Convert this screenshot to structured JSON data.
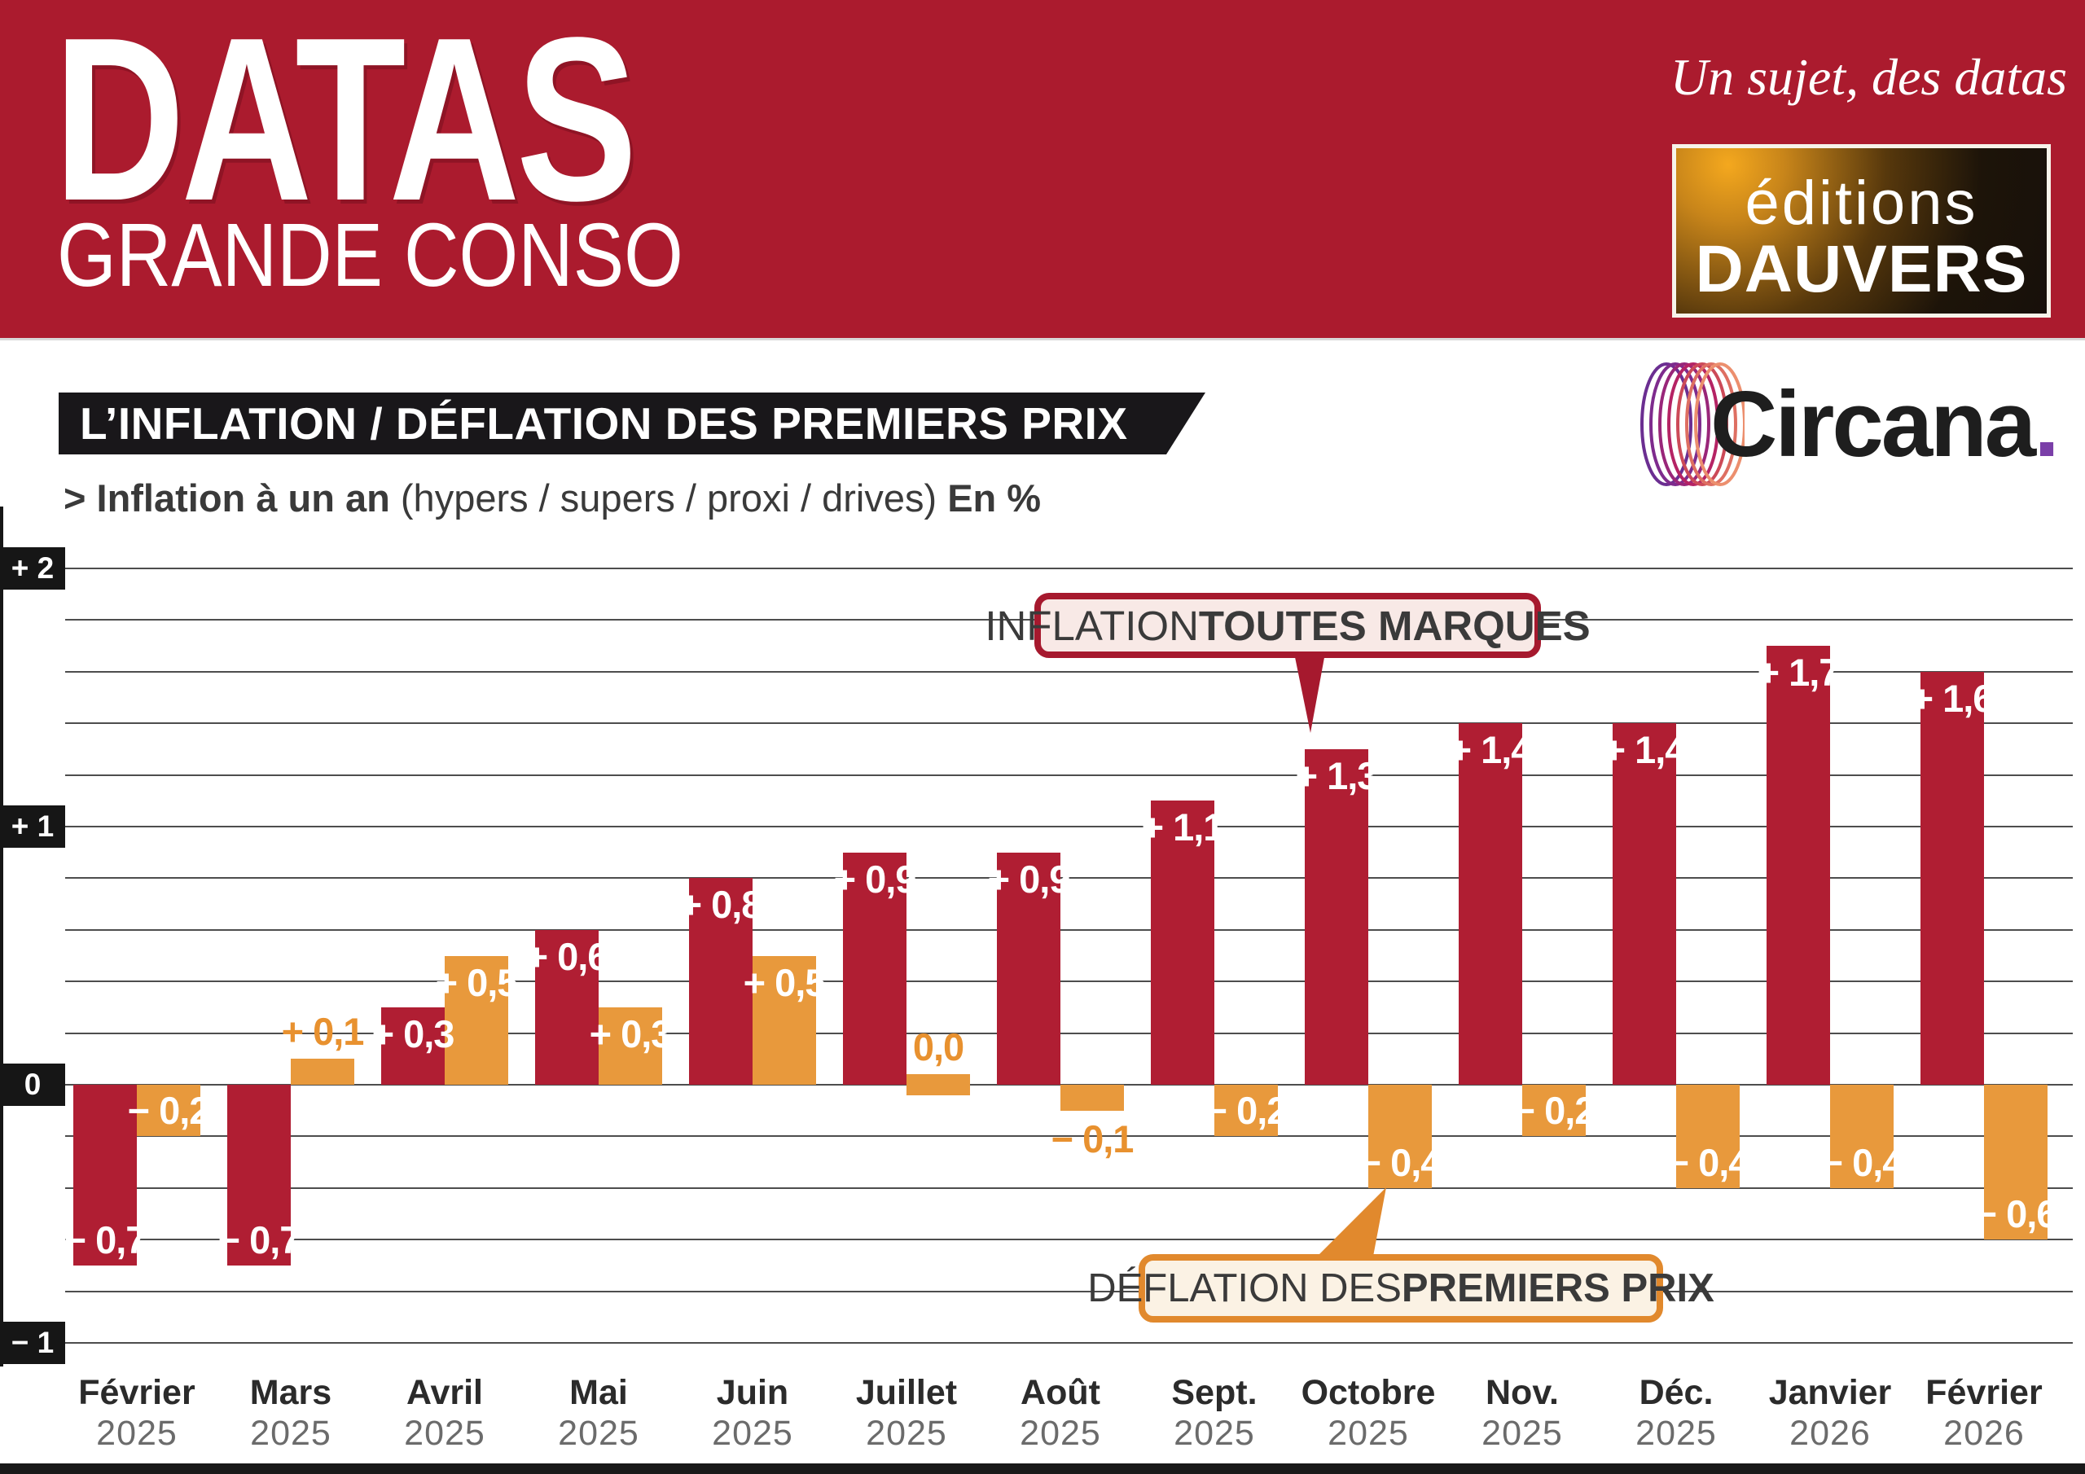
{
  "header": {
    "brand_title": "DATAS",
    "brand_subtitle": "GRANDE CONSO",
    "tagline": "Un sujet, des datas",
    "publisher": {
      "line1": "éditions",
      "line2": "DAUVERS"
    },
    "bg_color": "#AB1B2E"
  },
  "title_bar": {
    "text": "L’INFLATION / DÉFLATION DES PREMIERS PRIX"
  },
  "subtitle": {
    "marker": ">",
    "lead_bold": "Inflation à un an",
    "middle": "(hypers / supers / proxi / drives)",
    "tail_bold": "En %"
  },
  "circana": {
    "name": "Circana",
    "dot": "."
  },
  "callouts": {
    "inflation": {
      "light": "INFLATION ",
      "bold": "TOUTES MARQUES",
      "border": "#A6192E",
      "fill": "#F8E9E6"
    },
    "deflation": {
      "light": "DÉFLATION DES ",
      "bold": "PREMIERS PRIX",
      "border": "#E1892D",
      "fill": "#FBF2E4"
    }
  },
  "chart_data": {
    "type": "bar",
    "title": "L’inflation / déflation des premiers prix",
    "ylabel": "En %",
    "ylim": [
      -1,
      2
    ],
    "grid_step": 0.2,
    "grid_on": true,
    "yticks": [
      {
        "label": "+ 2",
        "value": 2
      },
      {
        "label": "+ 1",
        "value": 1
      },
      {
        "label": "0",
        "value": 0
      },
      {
        "label": "− 1",
        "value": -1
      }
    ],
    "categories": [
      {
        "month": "Février",
        "year": "2025"
      },
      {
        "month": "Mars",
        "year": "2025"
      },
      {
        "month": "Avril",
        "year": "2025"
      },
      {
        "month": "Mai",
        "year": "2025"
      },
      {
        "month": "Juin",
        "year": "2025"
      },
      {
        "month": "Juillet",
        "year": "2025"
      },
      {
        "month": "Août",
        "year": "2025"
      },
      {
        "month": "Sept.",
        "year": "2025"
      },
      {
        "month": "Octobre",
        "year": "2025"
      },
      {
        "month": "Nov.",
        "year": "2025"
      },
      {
        "month": "Déc.",
        "year": "2025"
      },
      {
        "month": "Janvier",
        "year": "2026"
      },
      {
        "month": "Février",
        "year": "2026"
      }
    ],
    "series": [
      {
        "name": "Inflation toutes marques",
        "color": "#B01E33",
        "values": [
          -0.7,
          -0.7,
          0.3,
          0.6,
          0.8,
          0.9,
          0.9,
          1.1,
          1.3,
          1.4,
          1.4,
          1.7,
          1.6
        ],
        "labels": [
          "− 0,7",
          "− 0,7",
          "+ 0,3",
          "+ 0,6",
          "+ 0,8",
          "+ 0,9",
          "+ 0,9",
          "+ 1,1",
          "+ 1,3",
          "+ 1,4",
          "+ 1,4",
          "+ 1,7",
          "+ 1,6"
        ],
        "label_pos": [
          "inside-bottom",
          "inside-bottom",
          "inside-top",
          "inside-top",
          "inside-top",
          "inside-top",
          "inside-top",
          "inside-top",
          "inside-top",
          "inside-top",
          "inside-top",
          "inside-top",
          "inside-top"
        ]
      },
      {
        "name": "Déflation des premiers prix",
        "color": "#E8993C",
        "values": [
          -0.2,
          0.1,
          0.5,
          0.3,
          0.5,
          0.0,
          -0.1,
          -0.2,
          -0.4,
          -0.2,
          -0.4,
          -0.4,
          -0.6
        ],
        "labels": [
          "− 0,2",
          "+ 0,1",
          "+ 0,5",
          "+ 0,3",
          "+ 0,5",
          "0,0",
          "− 0,1",
          "− 0,2",
          "− 0,4",
          "− 0,2",
          "− 0,4",
          "− 0,4",
          "− 0,6"
        ],
        "label_pos": [
          "inside-bottom",
          "above",
          "inside-top",
          "inside-top",
          "inside-top",
          "above",
          "below",
          "inside-bottom",
          "inside-bottom",
          "inside-bottom",
          "inside-bottom",
          "inside-bottom",
          "inside-bottom"
        ],
        "outside_label_color": "#E8912F"
      }
    ]
  }
}
